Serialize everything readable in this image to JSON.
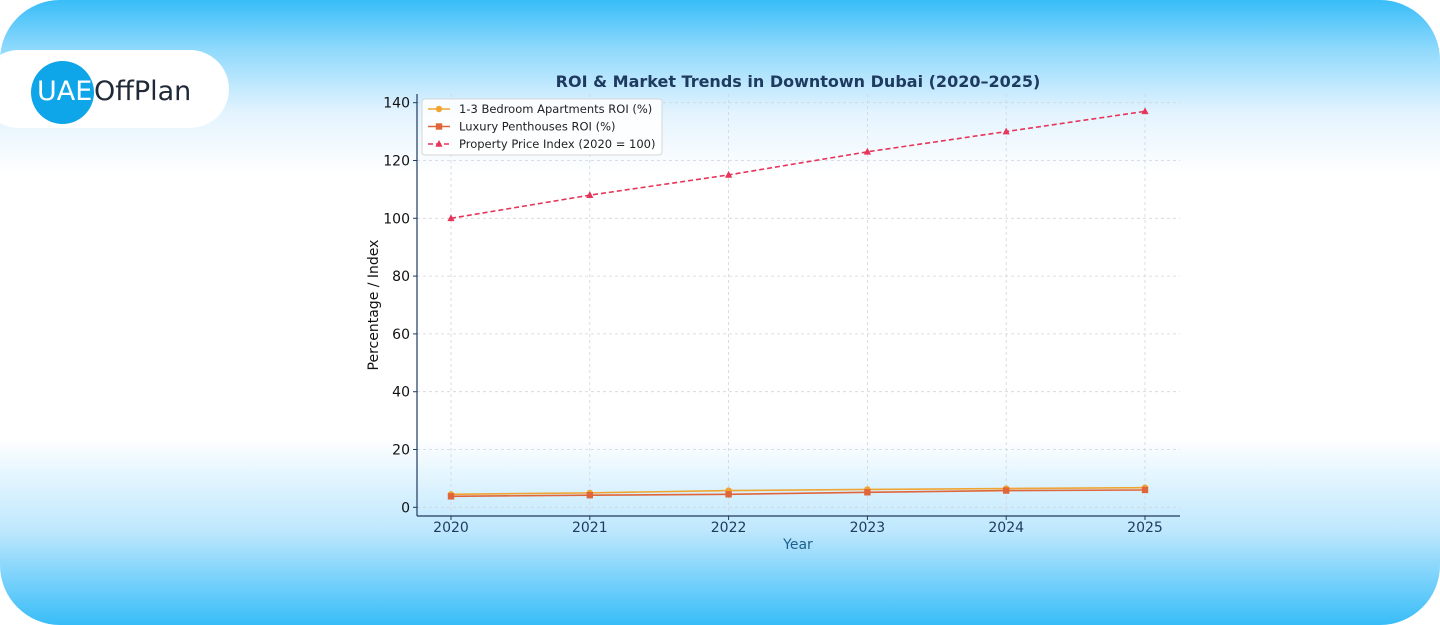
{
  "brand": {
    "logo_part1": "UAE",
    "logo_part2": "OffPlan",
    "accent": "#0ea5e9"
  },
  "chart_data": {
    "type": "line",
    "title": "ROI & Market Trends in Downtown Dubai (2020–2025)",
    "xlabel": "Year",
    "ylabel": "Percentage / Index",
    "x": [
      "2020",
      "2021",
      "2022",
      "2023",
      "2024",
      "2025"
    ],
    "ylim": [
      -3,
      143
    ],
    "yticks": [
      0,
      20,
      40,
      60,
      80,
      100,
      120,
      140
    ],
    "grid": true,
    "legend": "top-left",
    "series": [
      {
        "name": "1-3 Bedroom Apartments ROI (%)",
        "values": [
          4.5,
          5.0,
          5.8,
          6.2,
          6.5,
          6.8
        ],
        "color": "#f0a532",
        "marker": "circle",
        "dash": false
      },
      {
        "name": "Luxury Penthouses ROI (%)",
        "values": [
          3.8,
          4.2,
          4.5,
          5.2,
          5.8,
          6.0
        ],
        "color": "#e0663a",
        "marker": "square",
        "dash": false
      },
      {
        "name": "Property Price Index (2020 = 100)",
        "values": [
          100,
          108,
          115,
          123,
          130,
          137
        ],
        "color": "#e63559",
        "marker": "triangle",
        "dash": true
      }
    ]
  }
}
